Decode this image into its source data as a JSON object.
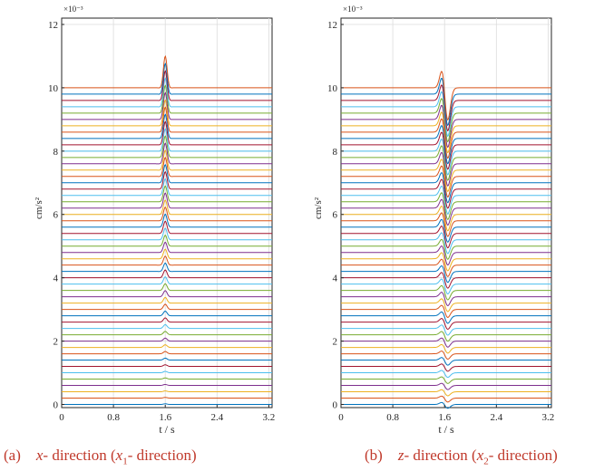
{
  "chart_data": [
    {
      "type": "line",
      "panel_label": "(a)",
      "caption": {
        "axis": "x",
        "mid": "- direction (",
        "axis2": "x",
        "sub": "1",
        "tail": "- direction)"
      },
      "xlabel": "t / s",
      "ylabel": "cm/s²",
      "exponent_label": "×10⁻³",
      "xlim": [
        0,
        3.25
      ],
      "ylim": [
        -0.1,
        12.2
      ],
      "xticks": [
        0,
        0.8,
        1.6,
        2.4,
        3.2
      ],
      "xtick_labels": [
        "0",
        "0.8",
        "1.6",
        "2.4",
        "3.2"
      ],
      "yticks": [
        0,
        2,
        4,
        6,
        8,
        10,
        12
      ],
      "ytick_labels": [
        "0",
        "2",
        "4",
        "6",
        "8",
        "10",
        "12"
      ],
      "grid": true,
      "traces": {
        "count": 51,
        "baseline_start": 0,
        "baseline_step": 0.2,
        "pulse_center_s": 1.6,
        "pulse_width_s": 0.045,
        "pulse_shape": "symmetric peak",
        "amplitude_top": 1.0,
        "amplitude_bottom": 0.02
      },
      "series_colors": [
        "#0072bd",
        "#d95319",
        "#edb120",
        "#7e2f8e",
        "#77ac30",
        "#4dbeee",
        "#a2142f"
      ]
    },
    {
      "type": "line",
      "panel_label": "(b)",
      "caption": {
        "axis": "z",
        "mid": "- direction (",
        "axis2": "x",
        "sub": "2",
        "tail": "- direction)"
      },
      "xlabel": "t / s",
      "ylabel": "cm/s²",
      "exponent_label": "×10⁻³",
      "xlim": [
        0,
        3.25
      ],
      "ylim": [
        -0.1,
        12.2
      ],
      "xticks": [
        0,
        0.8,
        1.6,
        2.4,
        3.2
      ],
      "xtick_labels": [
        "0",
        "0.8",
        "1.6",
        "2.4",
        "3.2"
      ],
      "yticks": [
        0,
        2,
        4,
        6,
        8,
        10,
        12
      ],
      "ytick_labels": [
        "0",
        "2",
        "4",
        "6",
        "8",
        "10",
        "12"
      ],
      "grid": true,
      "traces": {
        "count": 51,
        "baseline_start": 0,
        "baseline_step": 0.2,
        "pulse_center_s": 1.6,
        "pulse_width_s": 0.06,
        "pulse_shape": "peak then trough",
        "amplitude_top": 1.0,
        "amplitude_bottom": 0.12
      },
      "series_colors": [
        "#0072bd",
        "#d95319",
        "#edb120",
        "#7e2f8e",
        "#77ac30",
        "#4dbeee",
        "#a2142f"
      ]
    }
  ]
}
